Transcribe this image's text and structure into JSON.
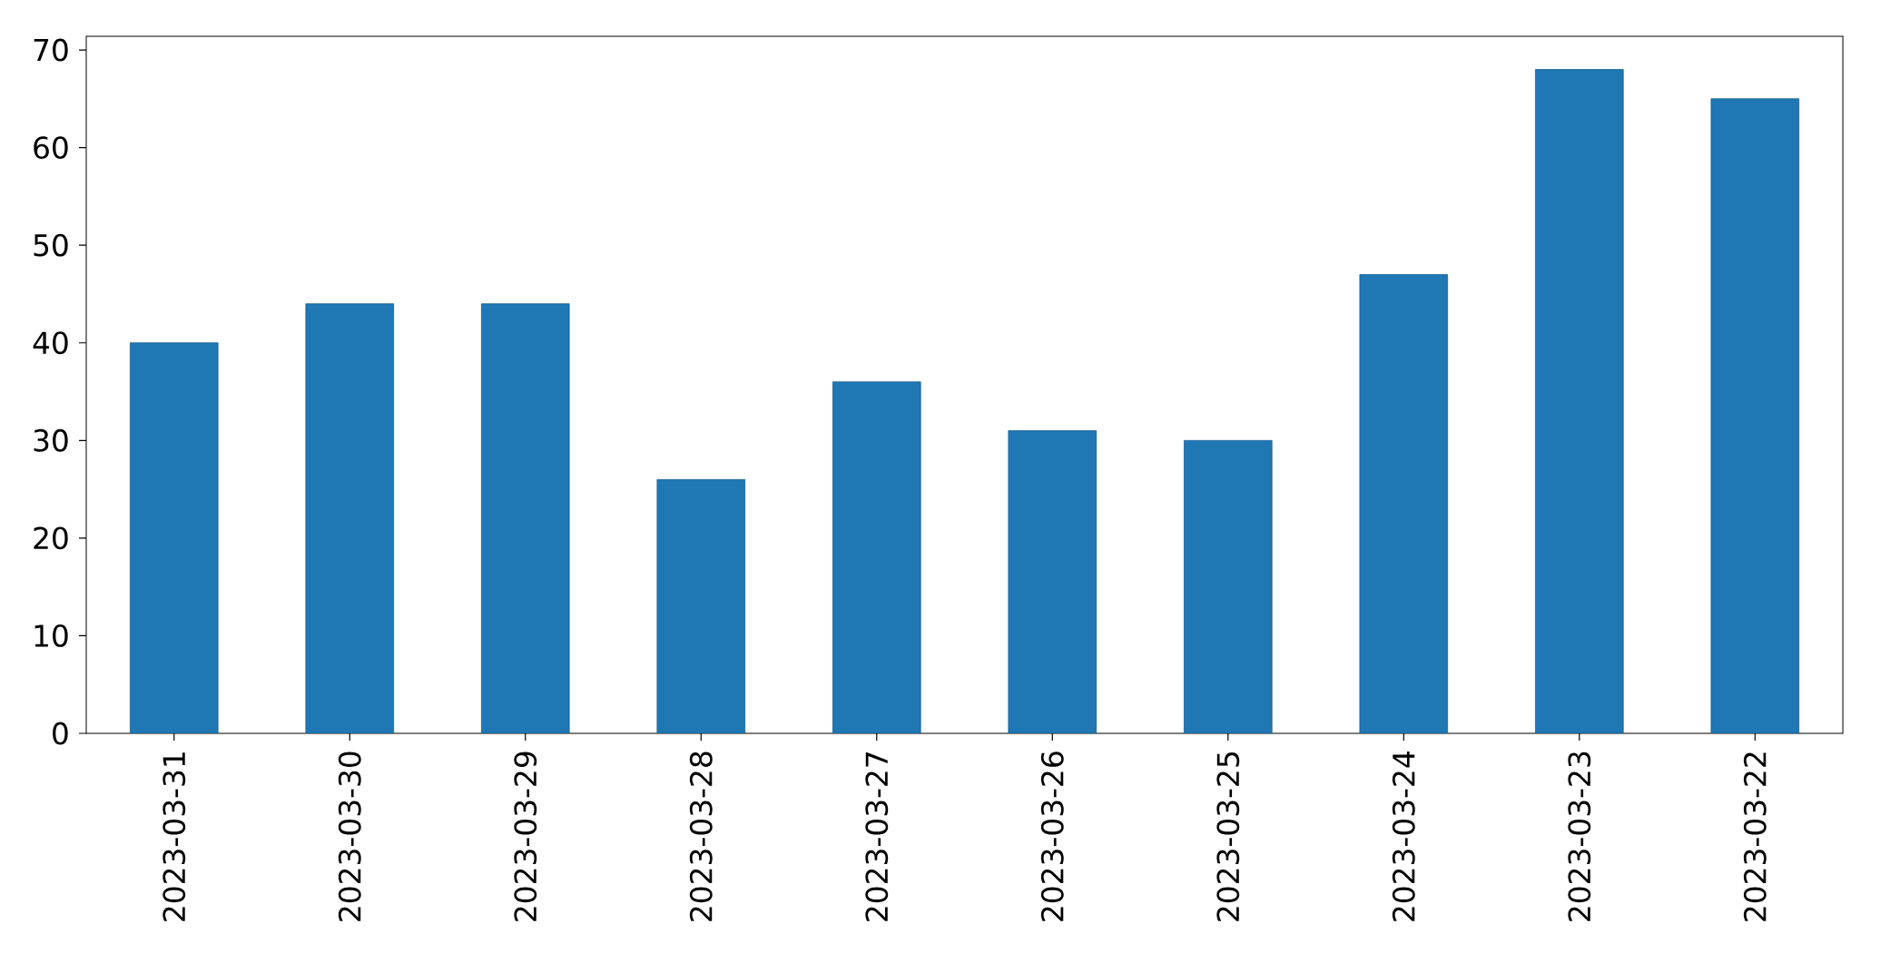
{
  "chart_data": {
    "type": "bar",
    "categories": [
      "2023-03-31",
      "2023-03-30",
      "2023-03-29",
      "2023-03-28",
      "2023-03-27",
      "2023-03-26",
      "2023-03-25",
      "2023-03-24",
      "2023-03-23",
      "2023-03-22"
    ],
    "values": [
      40,
      44,
      44,
      26,
      36,
      31,
      30,
      47,
      68,
      65
    ],
    "color": "#1f77b4",
    "ylim": [
      0,
      71.4
    ],
    "yticks": [
      0,
      10,
      20,
      30,
      40,
      50,
      60,
      70
    ],
    "grid": false
  }
}
